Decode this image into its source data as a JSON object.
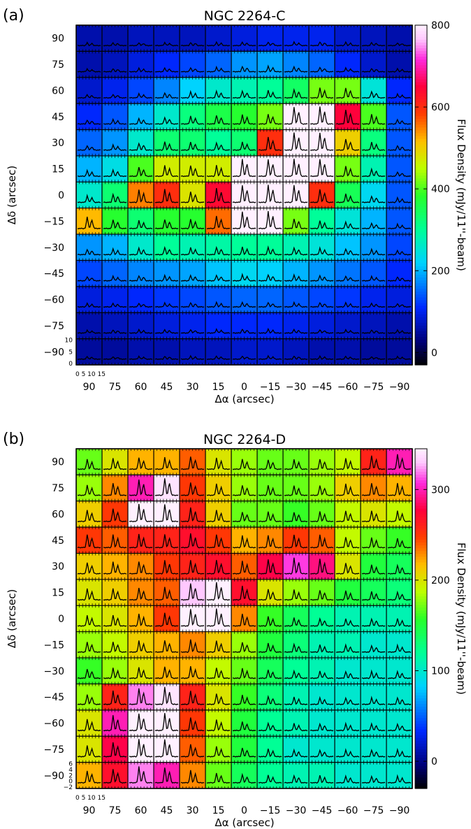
{
  "chart_data": [
    {
      "type": "heatmap",
      "panel_label": "(a)",
      "title": "NGC 2264-C",
      "xlabel": "Δα (arcsec)",
      "ylabel": "Δδ (arcsec)",
      "x_ticks": [
        90,
        75,
        60,
        45,
        30,
        15,
        0,
        -15,
        -30,
        -45,
        -60,
        -75,
        -90
      ],
      "x_tick_labels": [
        "90",
        "75",
        "60",
        "45",
        "30",
        "15",
        "0",
        "−15",
        "−30",
        "−45",
        "−60",
        "−75",
        "−90"
      ],
      "y_ticks": [
        90,
        75,
        60,
        45,
        30,
        15,
        0,
        -15,
        -30,
        -45,
        -60,
        -75,
        -90
      ],
      "y_tick_labels": [
        "90",
        "75",
        "60",
        "45",
        "30",
        "15",
        "0",
        "−15",
        "−30",
        "−45",
        "−60",
        "−75",
        "−90"
      ],
      "colorbar": {
        "label": "Flux Density (mJy/11''-beam)",
        "min": -30,
        "max": 800,
        "ticks": [
          0,
          200,
          400,
          600,
          800
        ],
        "tick_labels": [
          "0",
          "200",
          "400",
          "600",
          "800"
        ]
      },
      "spectrum_y_ticks": [
        "0",
        "5",
        "10"
      ],
      "spectrum_x_ticks": "0 5 10 15",
      "grid_rows": 13,
      "grid_cols": 13,
      "values": [
        [
          60,
          60,
          70,
          70,
          70,
          80,
          90,
          100,
          100,
          100,
          80,
          70,
          60
        ],
        [
          60,
          70,
          90,
          110,
          130,
          150,
          180,
          190,
          170,
          150,
          110,
          80,
          60
        ],
        [
          80,
          100,
          130,
          170,
          220,
          260,
          280,
          300,
          340,
          420,
          420,
          250,
          110
        ],
        [
          110,
          140,
          200,
          260,
          320,
          360,
          380,
          420,
          800,
          800,
          650,
          400,
          140
        ],
        [
          150,
          180,
          260,
          330,
          330,
          300,
          330,
          600,
          800,
          800,
          500,
          320,
          140
        ],
        [
          200,
          240,
          400,
          470,
          470,
          470,
          800,
          800,
          800,
          800,
          420,
          280,
          140
        ],
        [
          260,
          330,
          550,
          600,
          480,
          640,
          800,
          800,
          800,
          600,
          350,
          230,
          140
        ],
        [
          520,
          380,
          330,
          380,
          380,
          560,
          800,
          800,
          420,
          300,
          250,
          200,
          140
        ],
        [
          180,
          200,
          260,
          300,
          280,
          290,
          300,
          300,
          280,
          250,
          210,
          180,
          130
        ],
        [
          130,
          150,
          170,
          180,
          190,
          210,
          230,
          220,
          200,
          180,
          160,
          140,
          110
        ],
        [
          90,
          100,
          110,
          120,
          130,
          140,
          150,
          150,
          140,
          130,
          120,
          100,
          90
        ],
        [
          60,
          70,
          80,
          90,
          100,
          110,
          110,
          110,
          100,
          90,
          80,
          70,
          60
        ],
        [
          50,
          50,
          60,
          60,
          70,
          70,
          80,
          80,
          70,
          60,
          60,
          50,
          50
        ]
      ]
    },
    {
      "type": "heatmap",
      "panel_label": "(b)",
      "title": "NGC 2264-D",
      "xlabel": "Δα (arcsec)",
      "ylabel": "Δδ (arcsec)",
      "x_ticks": [
        90,
        75,
        60,
        45,
        30,
        15,
        0,
        -15,
        -30,
        -45,
        -60,
        -75,
        -90
      ],
      "x_tick_labels": [
        "90",
        "75",
        "60",
        "45",
        "30",
        "15",
        "0",
        "−15",
        "−30",
        "−45",
        "−60",
        "−75",
        "−90"
      ],
      "y_ticks": [
        90,
        75,
        60,
        45,
        30,
        15,
        0,
        -15,
        -30,
        -45,
        -60,
        -75,
        -90
      ],
      "y_tick_labels": [
        "90",
        "75",
        "60",
        "45",
        "30",
        "15",
        "0",
        "−15",
        "−30",
        "−45",
        "−60",
        "−75",
        "−90"
      ],
      "colorbar": {
        "label": "Flux Density (mJy/11''-beam)",
        "min": -30,
        "max": 345,
        "ticks": [
          0,
          100,
          200,
          300
        ],
        "tick_labels": [
          "0",
          "100",
          "200",
          "300"
        ]
      },
      "spectrum_y_ticks": [
        "−2",
        "0",
        "2",
        "4",
        "6"
      ],
      "spectrum_x_ticks": "0 5 10 15",
      "grid_rows": 13,
      "grid_cols": 13,
      "values": [
        [
          170,
          200,
          220,
          220,
          240,
          200,
          180,
          170,
          170,
          180,
          190,
          260,
          300
        ],
        [
          180,
          230,
          300,
          340,
          250,
          210,
          180,
          170,
          170,
          180,
          210,
          230,
          220
        ],
        [
          210,
          250,
          345,
          345,
          260,
          210,
          170,
          170,
          160,
          170,
          190,
          200,
          190
        ],
        [
          250,
          240,
          260,
          260,
          270,
          250,
          220,
          230,
          250,
          240,
          190,
          170,
          160
        ],
        [
          210,
          220,
          230,
          250,
          260,
          270,
          240,
          280,
          310,
          290,
          200,
          150,
          140
        ],
        [
          200,
          210,
          230,
          240,
          330,
          345,
          270,
          200,
          180,
          170,
          150,
          140,
          130
        ],
        [
          190,
          200,
          220,
          250,
          345,
          345,
          230,
          160,
          140,
          120,
          110,
          110,
          110
        ],
        [
          180,
          190,
          210,
          220,
          230,
          210,
          180,
          150,
          130,
          110,
          110,
          100,
          100
        ],
        [
          160,
          180,
          200,
          220,
          220,
          190,
          170,
          140,
          120,
          110,
          100,
          100,
          100
        ],
        [
          180,
          260,
          320,
          340,
          260,
          200,
          160,
          130,
          110,
          100,
          100,
          100,
          100
        ],
        [
          200,
          300,
          345,
          345,
          250,
          190,
          150,
          120,
          110,
          100,
          100,
          100,
          100
        ],
        [
          200,
          280,
          345,
          345,
          240,
          180,
          150,
          120,
          100,
          100,
          100,
          100,
          100
        ],
        [
          220,
          270,
          320,
          300,
          230,
          170,
          140,
          120,
          110,
          110,
          100,
          100,
          100
        ]
      ]
    }
  ]
}
